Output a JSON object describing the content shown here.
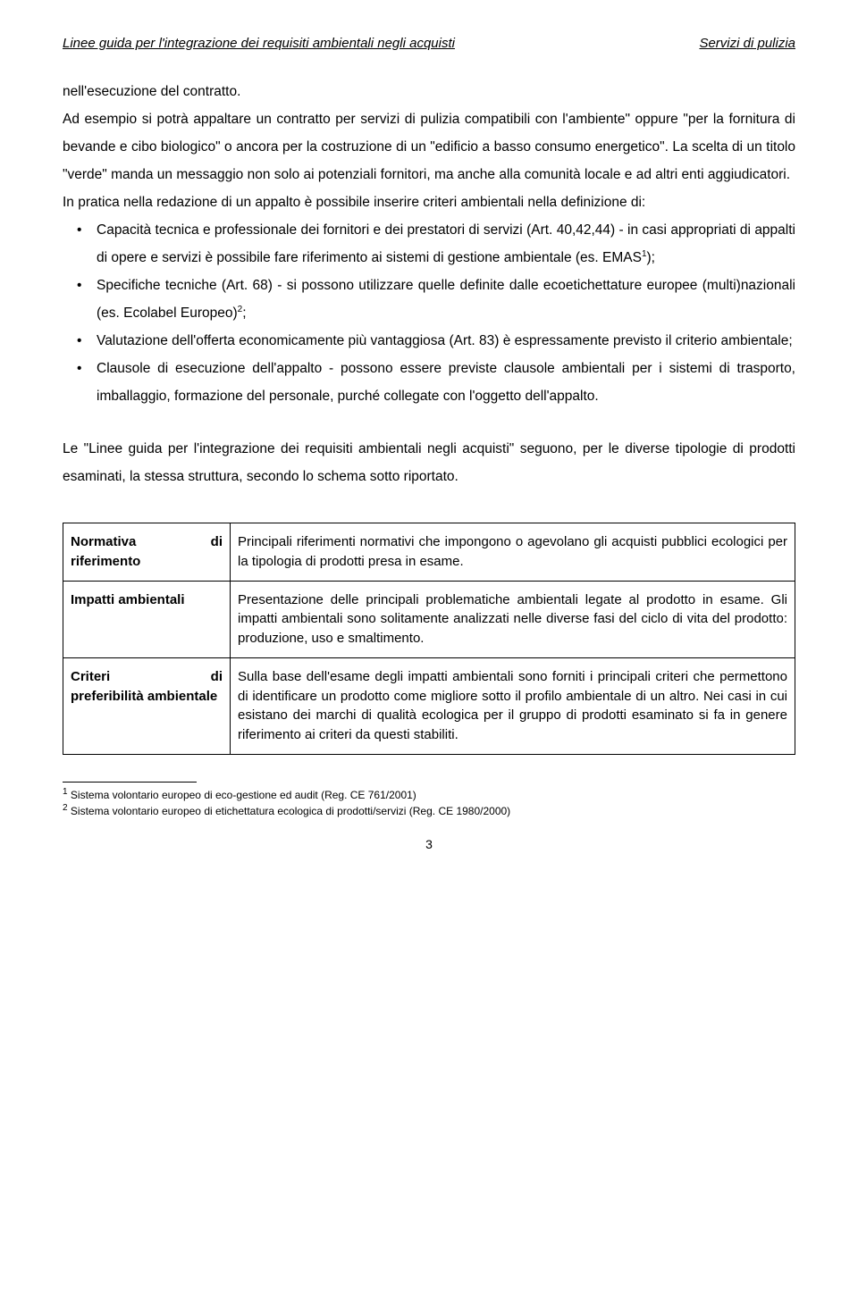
{
  "header": {
    "left": "Linee guida per l'integrazione dei requisiti ambientali negli acquisti",
    "right": "Servizi di pulizia"
  },
  "para1": "nell'esecuzione del contratto.",
  "para2": "Ad esempio si potrà appaltare un contratto per servizi di pulizia compatibili con l'ambiente\" oppure \"per la fornitura di bevande e cibo biologico\" o ancora per la costruzione di un \"edificio a basso consumo energetico\". La scelta di un titolo \"verde\" manda un messaggio non solo ai potenziali fornitori, ma anche alla comunità locale e ad altri enti aggiudicatori.",
  "para3": "In pratica nella redazione di un appalto è possibile inserire criteri ambientali nella definizione di:",
  "bullets": [
    "Capacità tecnica e professionale dei fornitori e dei prestatori di servizi (Art. 40,42,44) - in casi appropriati di appalti di opere e servizi è possibile fare riferimento ai sistemi di gestione ambientale (es. EMAS",
    "Specifiche tecniche (Art. 68) - si possono utilizzare quelle definite dalle ecoetichettature europee (multi)nazionali (es. Ecolabel Europeo)",
    "Valutazione dell'offerta economicamente più vantaggiosa (Art. 83) è espressamente previsto il criterio ambientale;",
    "Clausole di esecuzione dell'appalto - possono essere previste clausole ambientali per i sistemi di trasporto, imballaggio, formazione del personale, purché collegate con l'oggetto dell'appalto."
  ],
  "bullet_suffix_1": ");",
  "bullet_suffix_2": ";",
  "para4": "Le \"Linee guida per l'integrazione dei requisiti ambientali negli acquisti\" seguono, per le diverse tipologie di prodotti esaminati, la stessa struttura, secondo lo schema sotto riportato.",
  "table": {
    "rows": [
      {
        "label_main": "Normativa",
        "label_right": "di",
        "label_sub": "riferimento",
        "desc": "Principali riferimenti normativi che impongono o agevolano gli acquisti pubblici ecologici per la tipologia di prodotti presa in esame."
      },
      {
        "label_main": "Impatti ambientali",
        "label_right": "",
        "label_sub": "",
        "desc": "Presentazione delle principali problematiche ambientali legate al prodotto in esame. Gli impatti ambientali sono solitamente analizzati nelle diverse fasi del ciclo di vita del prodotto: produzione, uso e smaltimento."
      },
      {
        "label_main": "Criteri",
        "label_right": "di",
        "label_sub": "preferibilità ambientale",
        "desc": "Sulla base dell'esame degli impatti ambientali sono forniti i principali criteri che permettono di identificare un prodotto come migliore sotto il profilo ambientale di un altro. Nei casi in cui esistano dei marchi di qualità ecologica per il gruppo di prodotti esaminato si fa in genere riferimento ai criteri da questi stabiliti."
      }
    ]
  },
  "footnotes": {
    "f1": " Sistema volontario europeo di eco-gestione ed audit (Reg. CE 761/2001)",
    "f2": " Sistema volontario europeo di etichettatura ecologica di prodotti/servizi (Reg. CE 1980/2000)"
  },
  "page_number": "3",
  "sup1": "1",
  "sup2": "2"
}
